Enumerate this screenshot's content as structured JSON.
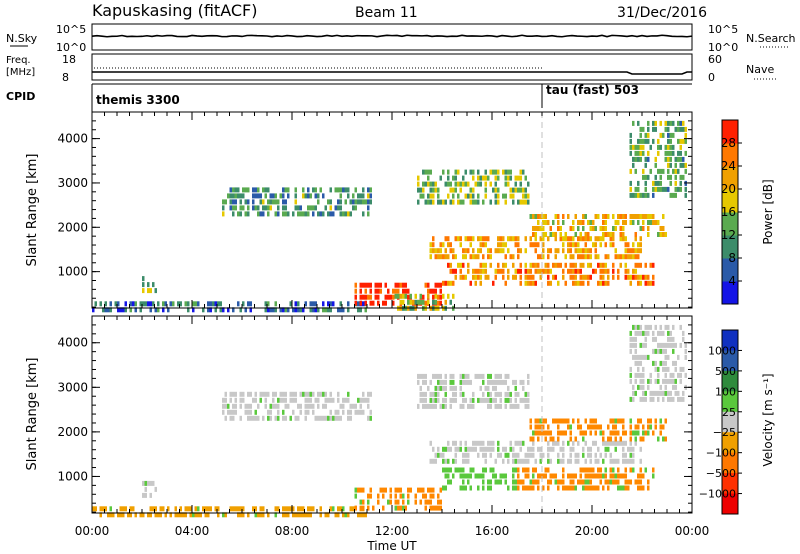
{
  "header": {
    "station": "Kapuskasing (fitACF)",
    "beam": "Beam 11",
    "date": "31/Dec/2016"
  },
  "status_panels": {
    "nsky": {
      "label": "N.Sky",
      "ticks": [
        "10^5",
        "10^0"
      ]
    },
    "nsearch": {
      "label": "N.Search",
      "ticks": [
        "10^5",
        "10^0"
      ]
    },
    "freq": {
      "label": "Freq.",
      "unit": "[MHz]",
      "ticks": [
        "18",
        "8"
      ]
    },
    "nave": {
      "label": "Nave",
      "ticks": [
        "60",
        "0"
      ]
    },
    "cpid": {
      "label": "CPID",
      "programs": [
        {
          "name": "themis 3300",
          "start_hour": 0
        },
        {
          "name": "tau (fast) 503",
          "start_hour": 18
        }
      ]
    }
  },
  "chart_data": [
    {
      "type": "heatmap",
      "parameter": "power",
      "ylabel": "Slant Range [km]",
      "yticks": [
        1000,
        2000,
        3000,
        4000
      ],
      "ylim": [
        180,
        4600
      ],
      "colorbar": {
        "label": "Power [dB]",
        "ticks": [
          4,
          8,
          12,
          16,
          20,
          24,
          28
        ],
        "range": [
          0,
          32
        ],
        "colors": [
          "#1414e6",
          "#2a5aa8",
          "#3c8c6a",
          "#5aaa50",
          "#e6c800",
          "#f0a000",
          "#ff7800",
          "#ff2000"
        ]
      },
      "echo_regions": [
        {
          "t": [
            0.0,
            11.0
          ],
          "r": [
            190,
            330
          ],
          "level": 0.25
        },
        {
          "t": [
            10.5,
            14.0
          ],
          "r": [
            300,
            750
          ],
          "level": 0.95
        },
        {
          "t": [
            5.2,
            11.2
          ],
          "r": [
            2300,
            2900
          ],
          "level": 0.35
        },
        {
          "t": [
            13.5,
            22.0
          ],
          "r": [
            1300,
            1800
          ],
          "level": 0.7
        },
        {
          "t": [
            14.0,
            22.5
          ],
          "r": [
            700,
            1200
          ],
          "level": 0.75
        },
        {
          "t": [
            17.5,
            23.0
          ],
          "r": [
            1800,
            2300
          ],
          "level": 0.6
        },
        {
          "t": [
            21.5,
            23.8
          ],
          "r": [
            2700,
            4400
          ],
          "level": 0.4
        },
        {
          "t": [
            2.0,
            2.6
          ],
          "r": [
            600,
            900
          ],
          "level": 0.45
        },
        {
          "t": [
            12.0,
            14.5
          ],
          "r": [
            200,
            500
          ],
          "level": 0.5
        },
        {
          "t": [
            13.0,
            17.5
          ],
          "r": [
            2500,
            3300
          ],
          "level": 0.45
        }
      ]
    },
    {
      "type": "heatmap",
      "parameter": "velocity",
      "ylabel": "Slant Range [km]",
      "yticks": [
        1000,
        2000,
        3000,
        4000
      ],
      "ylim": [
        180,
        4600
      ],
      "colorbar": {
        "label": "Velocity [m s⁻¹]",
        "ticks": [
          "1000",
          "500",
          "100",
          "25",
          "−25",
          "−100",
          "−500",
          "−1000"
        ]
      },
      "echo_regions": [
        {
          "t": [
            0.0,
            11.0
          ],
          "r": [
            190,
            330
          ],
          "color": "#f0a000"
        },
        {
          "t": [
            10.5,
            14.0
          ],
          "r": [
            300,
            750
          ],
          "color": "#ff8800"
        },
        {
          "t": [
            5.2,
            11.2
          ],
          "r": [
            2300,
            2900
          ],
          "color": "#c8c8c8"
        },
        {
          "t": [
            13.5,
            22.0
          ],
          "r": [
            1300,
            1800
          ],
          "color": "#c8c8c8"
        },
        {
          "t": [
            14.0,
            17.0
          ],
          "r": [
            700,
            1200
          ],
          "color": "#5ac83c"
        },
        {
          "t": [
            17.0,
            22.5
          ],
          "r": [
            700,
            1200
          ],
          "color": "#ff8800"
        },
        {
          "t": [
            17.5,
            23.0
          ],
          "r": [
            1800,
            2300
          ],
          "color": "#ff8800"
        },
        {
          "t": [
            21.5,
            23.8
          ],
          "r": [
            2700,
            4400
          ],
          "color": "#c8c8c8"
        },
        {
          "t": [
            2.0,
            2.6
          ],
          "r": [
            600,
            900
          ],
          "color": "#c8c8c8"
        },
        {
          "t": [
            13.0,
            17.5
          ],
          "r": [
            2500,
            3300
          ],
          "color": "#c8c8c8"
        }
      ]
    }
  ],
  "time_axis": {
    "label": "Time UT",
    "ticks": [
      "00:00",
      "04:00",
      "08:00",
      "12:00",
      "16:00",
      "20:00",
      "00:00"
    ],
    "range_hours": [
      0,
      24
    ]
  },
  "colors": {
    "frame": "#000000",
    "gap": "#c0c0c0"
  }
}
